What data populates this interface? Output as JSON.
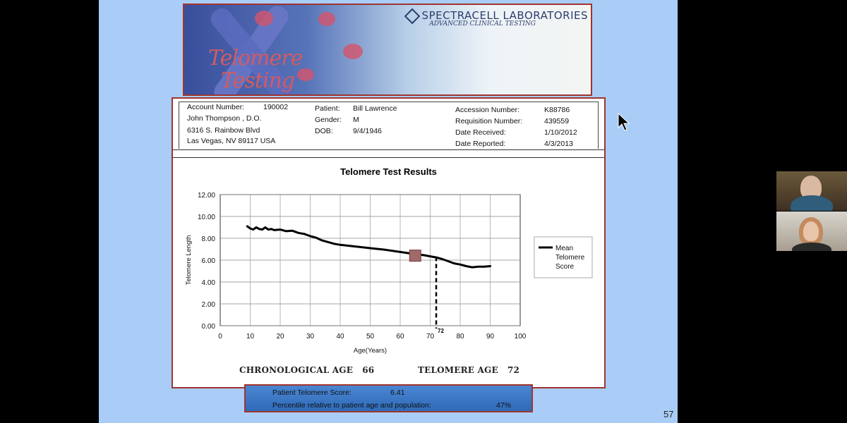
{
  "banner": {
    "company": "SPECTRACELL LABORATORIES",
    "tagline": "ADVANCED CLINICAL TESTING",
    "title_line1": "Telomere",
    "title_line2": "Testing"
  },
  "header": {
    "account_label": "Account Number:",
    "account_value": "190002",
    "doctor": "John Thompson , D.O.",
    "address1": "6316 S. Rainbow Blvd",
    "address2": "Las Vegas, NV 89117 USA",
    "patient_label": "Patient:",
    "patient_value": "Bill Lawrence",
    "gender_label": "Gender:",
    "gender_value": "M",
    "dob_label": "DOB:",
    "dob_value": "9/4/1946",
    "accession_label": "Accession Number:",
    "accession_value": "K88786",
    "requisition_label": "Requisition Number:",
    "requisition_value": "439559",
    "received_label": "Date Received:",
    "received_value": "1/10/2012",
    "reported_label": "Date Reported:",
    "reported_value": "4/3/2013"
  },
  "chart_data": {
    "type": "line",
    "title": "Telomere Test Results",
    "xlabel": "Age(Years)",
    "ylabel": "Telomere Length",
    "xlim": [
      0,
      100
    ],
    "ylim": [
      0,
      12
    ],
    "x_ticks": [
      "0",
      "10",
      "20",
      "30",
      "40",
      "50",
      "60",
      "70",
      "80",
      "90",
      "100"
    ],
    "y_ticks": [
      "0.00",
      "2.00",
      "4.00",
      "6.00",
      "8.00",
      "10.00",
      "12.00"
    ],
    "grid": true,
    "legend_position": "right",
    "series": [
      {
        "name": "Mean Telomere Score",
        "x": [
          9,
          10,
          11,
          12,
          13,
          14,
          15,
          16,
          17,
          18,
          20,
          22,
          24,
          26,
          28,
          30,
          32,
          34,
          36,
          38,
          40,
          45,
          50,
          55,
          60,
          65,
          68,
          70,
          72,
          74,
          76,
          78,
          80,
          82,
          84,
          86,
          88,
          90
        ],
        "y": [
          9.1,
          8.9,
          8.8,
          9.0,
          8.85,
          8.8,
          9.0,
          8.8,
          8.85,
          8.75,
          8.8,
          8.65,
          8.7,
          8.5,
          8.4,
          8.2,
          8.05,
          7.8,
          7.65,
          7.5,
          7.4,
          7.25,
          7.1,
          6.95,
          6.75,
          6.55,
          6.45,
          6.35,
          6.25,
          6.1,
          5.9,
          5.7,
          5.6,
          5.45,
          5.35,
          5.4,
          5.4,
          5.45
        ],
        "color": "#000000"
      }
    ],
    "patient_point": {
      "x": 65,
      "y": 6.41,
      "color": "#a06a6a"
    },
    "telomere_age_marker": {
      "x": 72,
      "label": "72"
    }
  },
  "summary": {
    "chronological_label": "CHRONOLOGICAL AGE",
    "chronological_value": "66",
    "telomere_label": "TELOMERE AGE",
    "telomere_value": "72"
  },
  "score_box": {
    "score_label": "Patient Telomere Score:",
    "score_value": "6.41",
    "percentile_label": "Percentile relative to patient age and population:",
    "percentile_value": "47%"
  },
  "slide_number": "57"
}
